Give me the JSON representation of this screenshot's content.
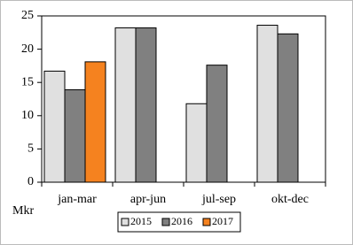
{
  "chart_data": {
    "type": "bar",
    "y_label": "Mkr",
    "categories": [
      "jan-mar",
      "apr-jun",
      "jul-sep",
      "okt-dec"
    ],
    "series": [
      {
        "name": "2015",
        "color": "#e0e0e0",
        "values": [
          16.7,
          23.2,
          11.8,
          23.6
        ]
      },
      {
        "name": "2016",
        "color": "#808080",
        "values": [
          13.9,
          23.2,
          17.6,
          22.3
        ]
      },
      {
        "name": "2017",
        "color": "#f5821f",
        "values": [
          18.1,
          null,
          null,
          null
        ]
      }
    ],
    "ylim": [
      0,
      25
    ],
    "yticks": [
      0,
      5,
      10,
      15,
      20,
      25
    ],
    "grid": false,
    "legend": "bottom"
  }
}
